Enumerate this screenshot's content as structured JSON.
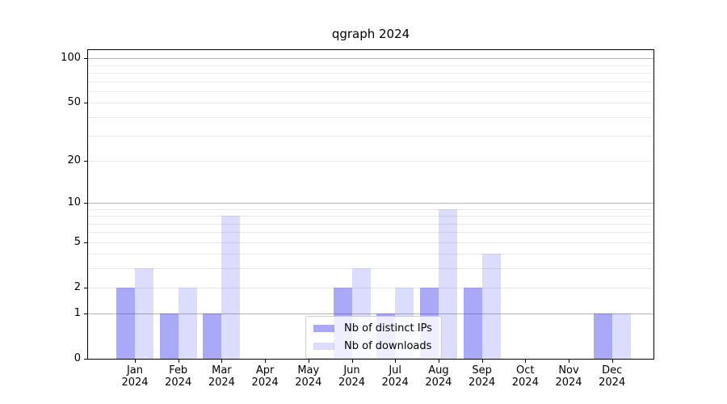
{
  "title": "qgraph 2024",
  "chart_data": {
    "type": "bar",
    "title": "qgraph 2024",
    "x_categories": [
      "Jan",
      "Feb",
      "Mar",
      "Apr",
      "May",
      "Jun",
      "Jul",
      "Aug",
      "Sep",
      "Oct",
      "Nov",
      "Dec"
    ],
    "x_year": "2024",
    "series": [
      {
        "name": "Nb of distinct IPs",
        "color": "#2828eb",
        "alpha": 0.4,
        "values": [
          2,
          1,
          1,
          0,
          0,
          2,
          1,
          2,
          2,
          0,
          0,
          1
        ]
      },
      {
        "name": "Nb of downloads",
        "color": "#2828eb",
        "alpha": 0.16,
        "values": [
          3,
          2,
          8,
          0,
          0,
          3,
          2,
          9,
          4,
          0,
          0,
          1
        ]
      }
    ],
    "yscale": "log1p",
    "ylim": [
      0,
      113
    ],
    "y_tick_values": [
      0,
      1,
      2,
      5,
      10,
      20,
      50,
      100
    ],
    "grid_major_values": [
      1,
      10,
      100
    ],
    "grid_minor_values": [
      2,
      3,
      4,
      5,
      6,
      7,
      8,
      9,
      20,
      30,
      40,
      50,
      60,
      70,
      80,
      90
    ],
    "grid_on": true,
    "legend_position": "lower center",
    "colors": {
      "grid_major": "#b5b5b5",
      "grid_minor": "#e9e9e9",
      "spine": "#000000",
      "text": "#000000",
      "legend_border": "#cccccc"
    }
  }
}
